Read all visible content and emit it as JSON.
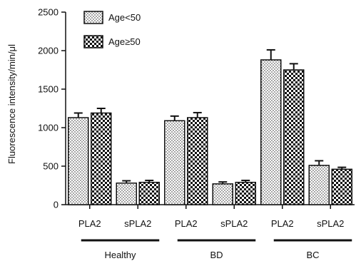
{
  "chart_data": {
    "type": "bar",
    "title": "",
    "xlabel": "",
    "ylabel": "Fluorescence intensity/min/μl",
    "ylim": [
      0,
      2500
    ],
    "yticks": [
      0,
      500,
      1000,
      1500,
      2000,
      2500
    ],
    "grid": false,
    "legend_position": "top-left",
    "categories": [
      "PLA2",
      "sPLA2",
      "PLA2",
      "sPLA2",
      "PLA2",
      "sPLA2"
    ],
    "groups": [
      {
        "label": "Healthy",
        "categories": [
          0,
          1
        ]
      },
      {
        "label": "BD",
        "categories": [
          2,
          3
        ]
      },
      {
        "label": "BC",
        "categories": [
          4,
          5
        ]
      }
    ],
    "series": [
      {
        "name": "Age<50",
        "pattern": "dots",
        "values": [
          1130,
          280,
          1090,
          270,
          1880,
          510
        ],
        "errors": [
          60,
          30,
          60,
          25,
          130,
          60
        ]
      },
      {
        "name": "Age≥50",
        "pattern": "checker",
        "values": [
          1190,
          290,
          1130,
          290,
          1750,
          460
        ],
        "errors": [
          60,
          25,
          65,
          25,
          80,
          25
        ]
      }
    ]
  }
}
